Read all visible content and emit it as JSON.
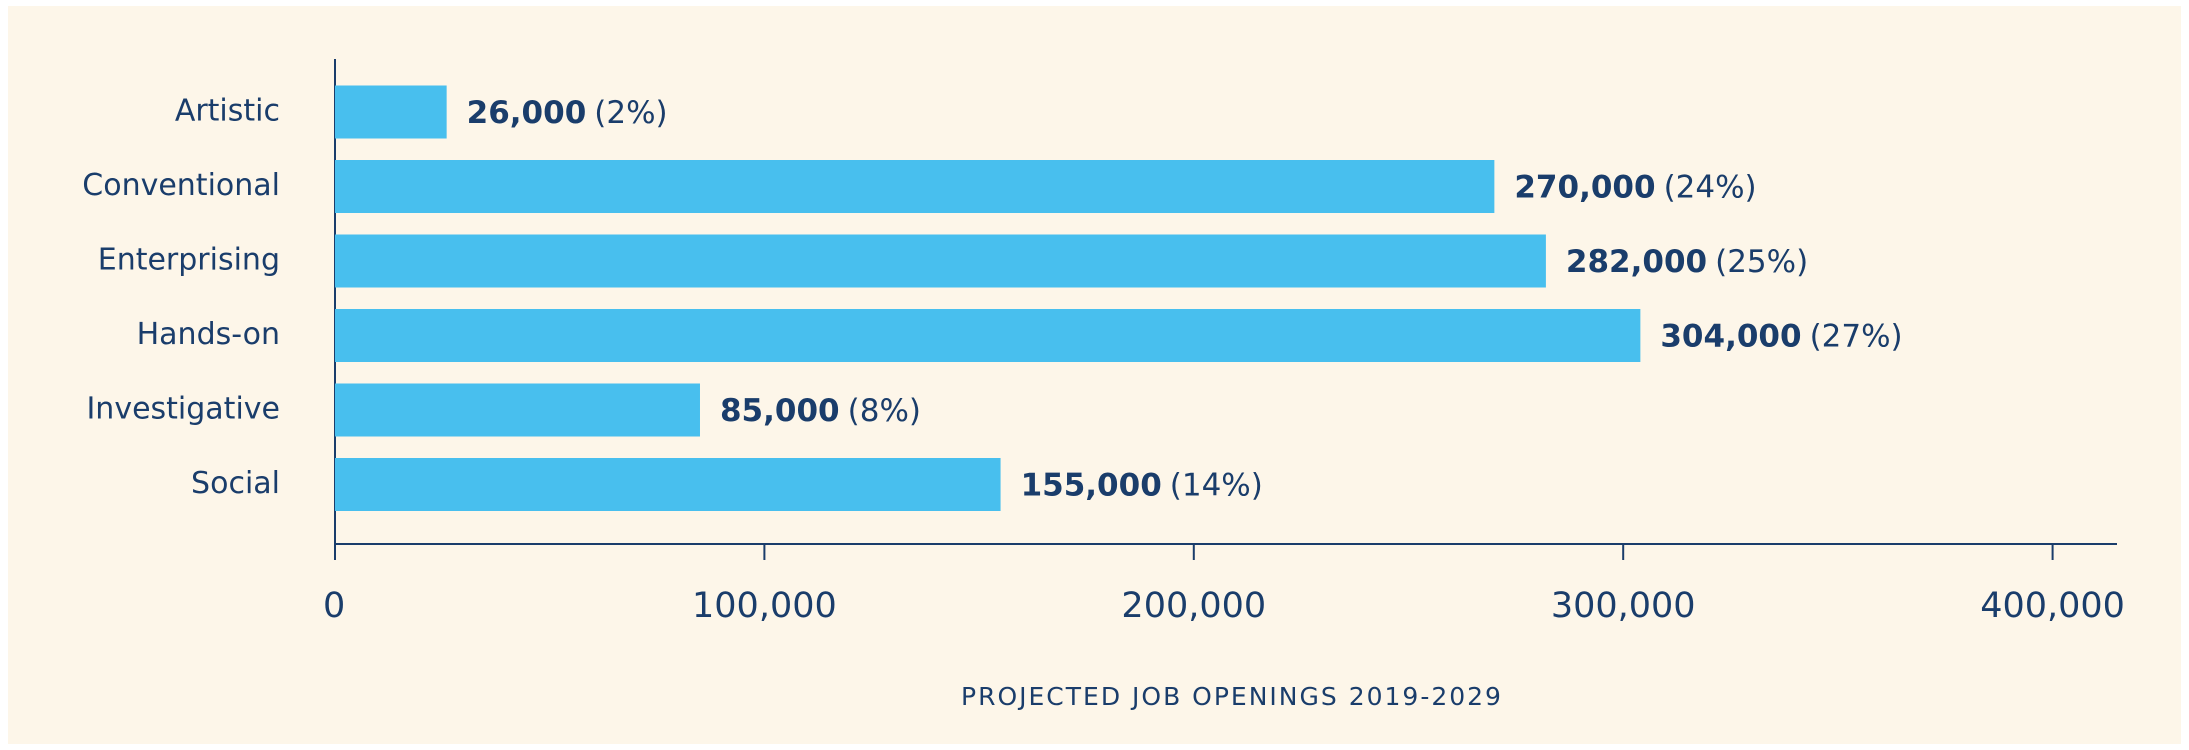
{
  "chart_data": {
    "type": "hbar",
    "x_axis_label": "PROJECTED JOB OPENINGS 2019-2029",
    "categories": [
      "Artistic",
      "Conventional",
      "Enterprising",
      "Hands-on",
      "Investigative",
      "Social"
    ],
    "values": [
      26000,
      270000,
      282000,
      304000,
      85000,
      155000
    ],
    "value_labels": [
      "26,000",
      "270,000",
      "282,000",
      "304,000",
      "85,000",
      "155,000"
    ],
    "share_labels": [
      "(2%)",
      "(24%)",
      "(25%)",
      "(27%)",
      "(8%)",
      "(14%)"
    ],
    "color": "#48bfee",
    "xlim": [
      0,
      415000
    ],
    "xticks": [
      0,
      {
        "value": 100000,
        "label": "100,000"
      },
      {
        "value": 200000,
        "label": "200,000"
      },
      {
        "value": 300000,
        "label": "300,000"
      },
      {
        "value": 400000,
        "label": "400,000"
      }
    ],
    "grid": false
  }
}
